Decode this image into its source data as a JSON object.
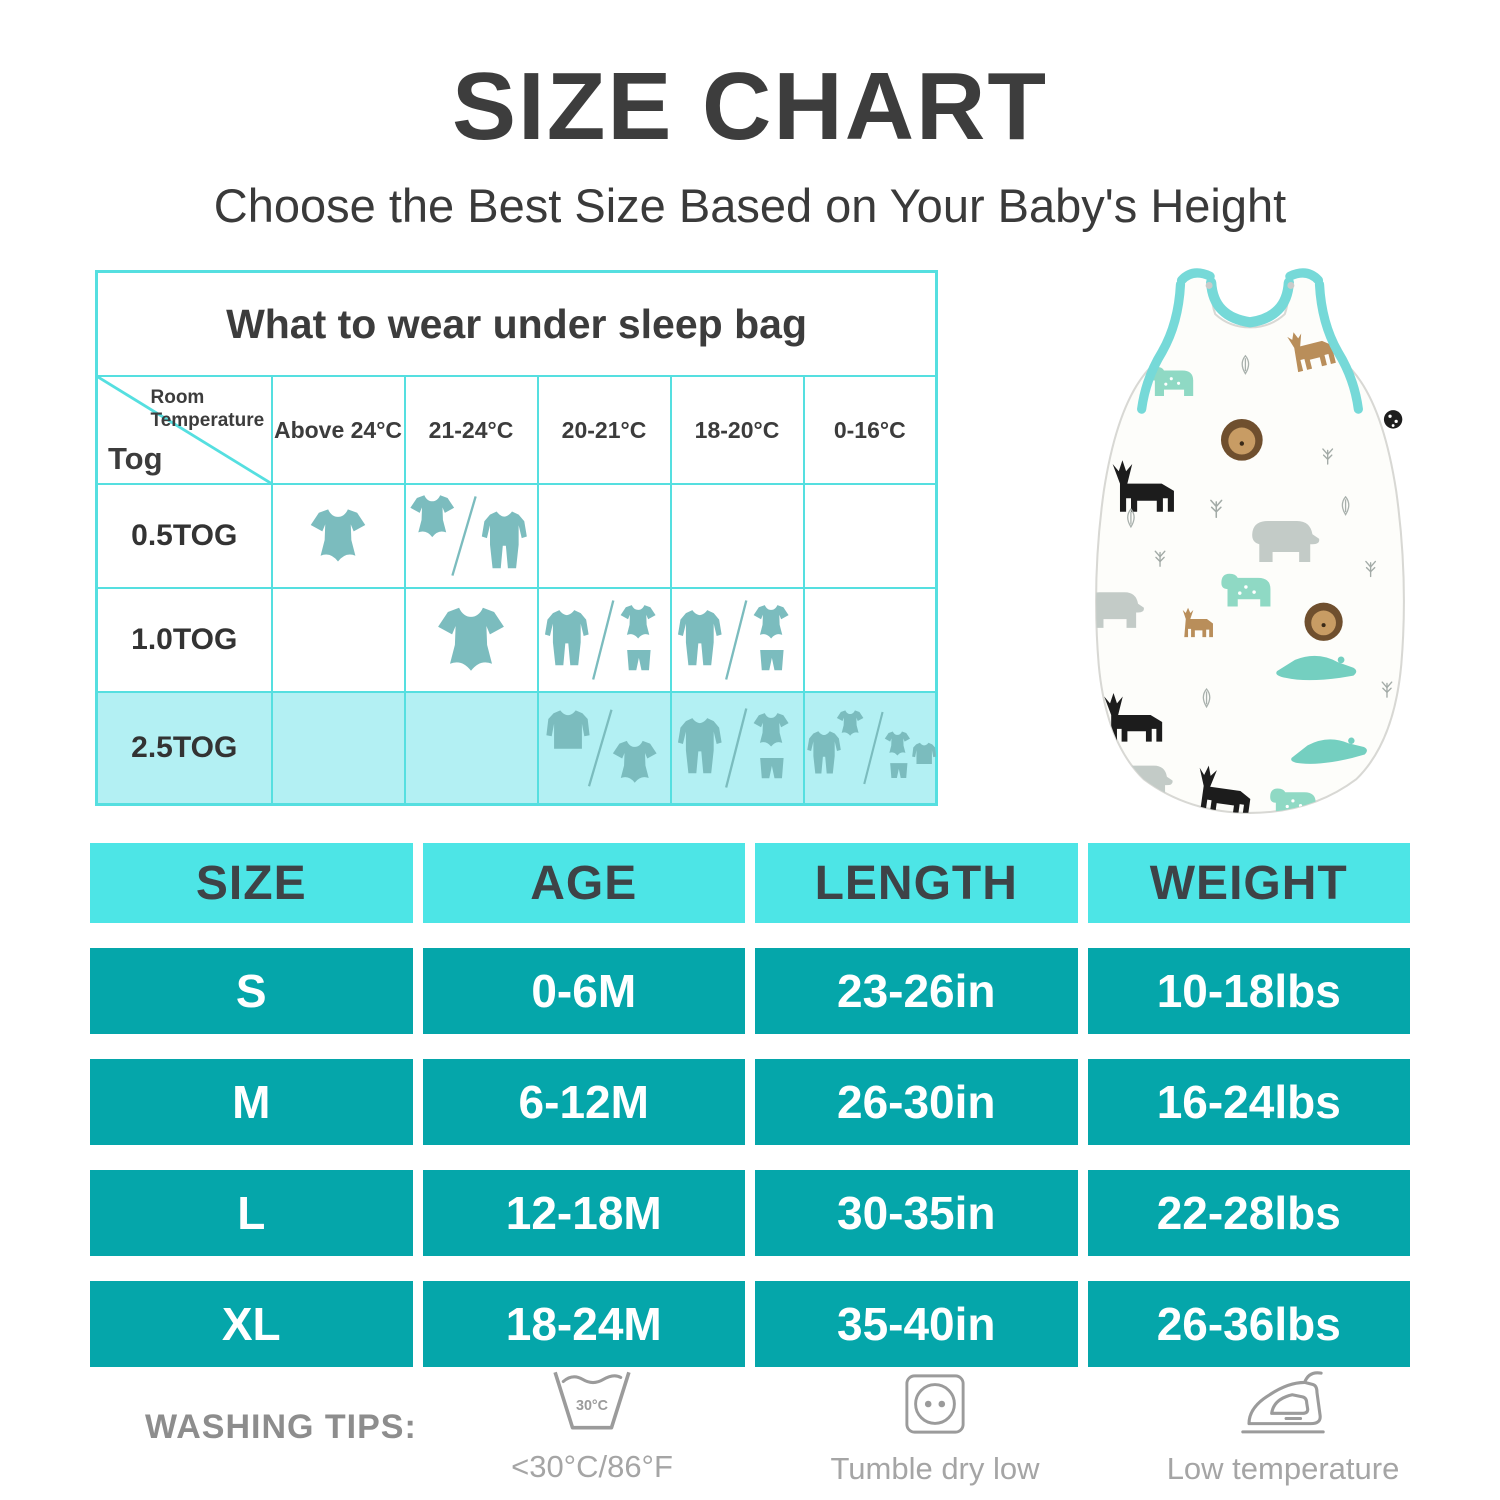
{
  "page": {
    "title": "SIZE CHART",
    "subtitle": "Choose the Best Size Based on Your Baby's Height"
  },
  "colors": {
    "table_border_cyan": "#55dfe0",
    "header_cyan": "#4de5e6",
    "row_teal": "#05a6aa",
    "highlight_row_cyan": "#b3f0f3",
    "clothing_icon_teal": "#7bbcbe",
    "trim_aqua": "#76d9d8",
    "dark_text": "#3d3d3d",
    "wash_gray": "#9b9b9b"
  },
  "wear_table": {
    "title": "What to wear under sleep bag",
    "corner": {
      "top_label": "Room Temperature",
      "bottom_label": "Tog"
    },
    "temp_headers": [
      "Above 24°C",
      "21-24°C",
      "20-21°C",
      "18-20°C",
      "0-16°C"
    ],
    "rows": [
      {
        "tog": "0.5TOG",
        "highlight": false,
        "cells": [
          "bodysuit",
          "bodysuit / sleeper",
          "",
          "",
          ""
        ]
      },
      {
        "tog": "1.0TOG",
        "highlight": false,
        "cells": [
          "",
          "bodysuit-large",
          "sleeper / bodysuit+pants",
          "sleeper / bodysuit+pants",
          ""
        ]
      },
      {
        "tog": "2.5TOG",
        "highlight": true,
        "cells": [
          "",
          "",
          "jacket / bodysuit",
          "sleeper / bodysuit+pants",
          "sleeper+bodysuit / bodysuit+pants+jacket"
        ]
      }
    ]
  },
  "size_table": {
    "headers": [
      "SIZE",
      "AGE",
      "LENGTH",
      "WEIGHT"
    ],
    "rows": [
      [
        "S",
        "0-6M",
        "23-26in",
        "10-18lbs"
      ],
      [
        "M",
        "6-12M",
        "26-30in",
        "16-24lbs"
      ],
      [
        "L",
        "12-18M",
        "30-35in",
        "22-28lbs"
      ],
      [
        "XL",
        "18-24M",
        "35-40in",
        "26-36lbs"
      ]
    ]
  },
  "washing": {
    "label": "WASHING TIPS:",
    "items": [
      {
        "icon": "wash-basin-icon",
        "icon_text": "30°C",
        "caption": "<30°C/86°F"
      },
      {
        "icon": "tumble-dry-icon",
        "caption": "Tumble dry low"
      },
      {
        "icon": "iron-icon",
        "caption": "Low temperature"
      }
    ]
  }
}
